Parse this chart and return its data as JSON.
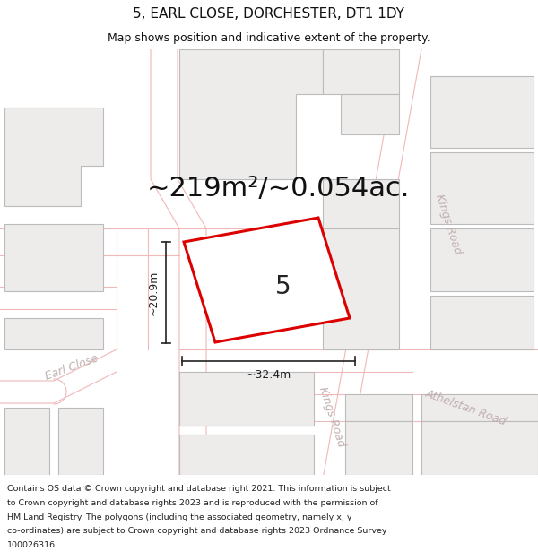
{
  "title": "5, EARL CLOSE, DORCHESTER, DT1 1DY",
  "subtitle": "Map shows position and indicative extent of the property.",
  "area_label": "~219m²/~0.054ac.",
  "plot_number": "5",
  "dim_width": "~32.4m",
  "dim_height": "~20.9m",
  "footer_lines": [
    "Contains OS data © Crown copyright and database right 2021. This information is subject",
    "to Crown copyright and database rights 2023 and is reproduced with the permission of",
    "HM Land Registry. The polygons (including the associated geometry, namely x, y",
    "co-ordinates) are subject to Crown copyright and database rights 2023 Ordnance Survey",
    "100026316."
  ],
  "map_bg": "#ffffff",
  "building_fill": "#eeebeb",
  "building_edge_gray": "#bbbbbb",
  "building_edge_pink": "#e8aaaa",
  "road_color": "#f0b8b8",
  "highlight_fill": "#ffffff",
  "highlight_edge": "#dd0000",
  "road_label_color": "#c0b0b0",
  "dim_color": "#222222",
  "title_fontsize": 11,
  "subtitle_fontsize": 9,
  "area_fontsize": 22,
  "footer_fontsize": 6.8,
  "road_fontsize": 9,
  "plot_num_fontsize": 20
}
